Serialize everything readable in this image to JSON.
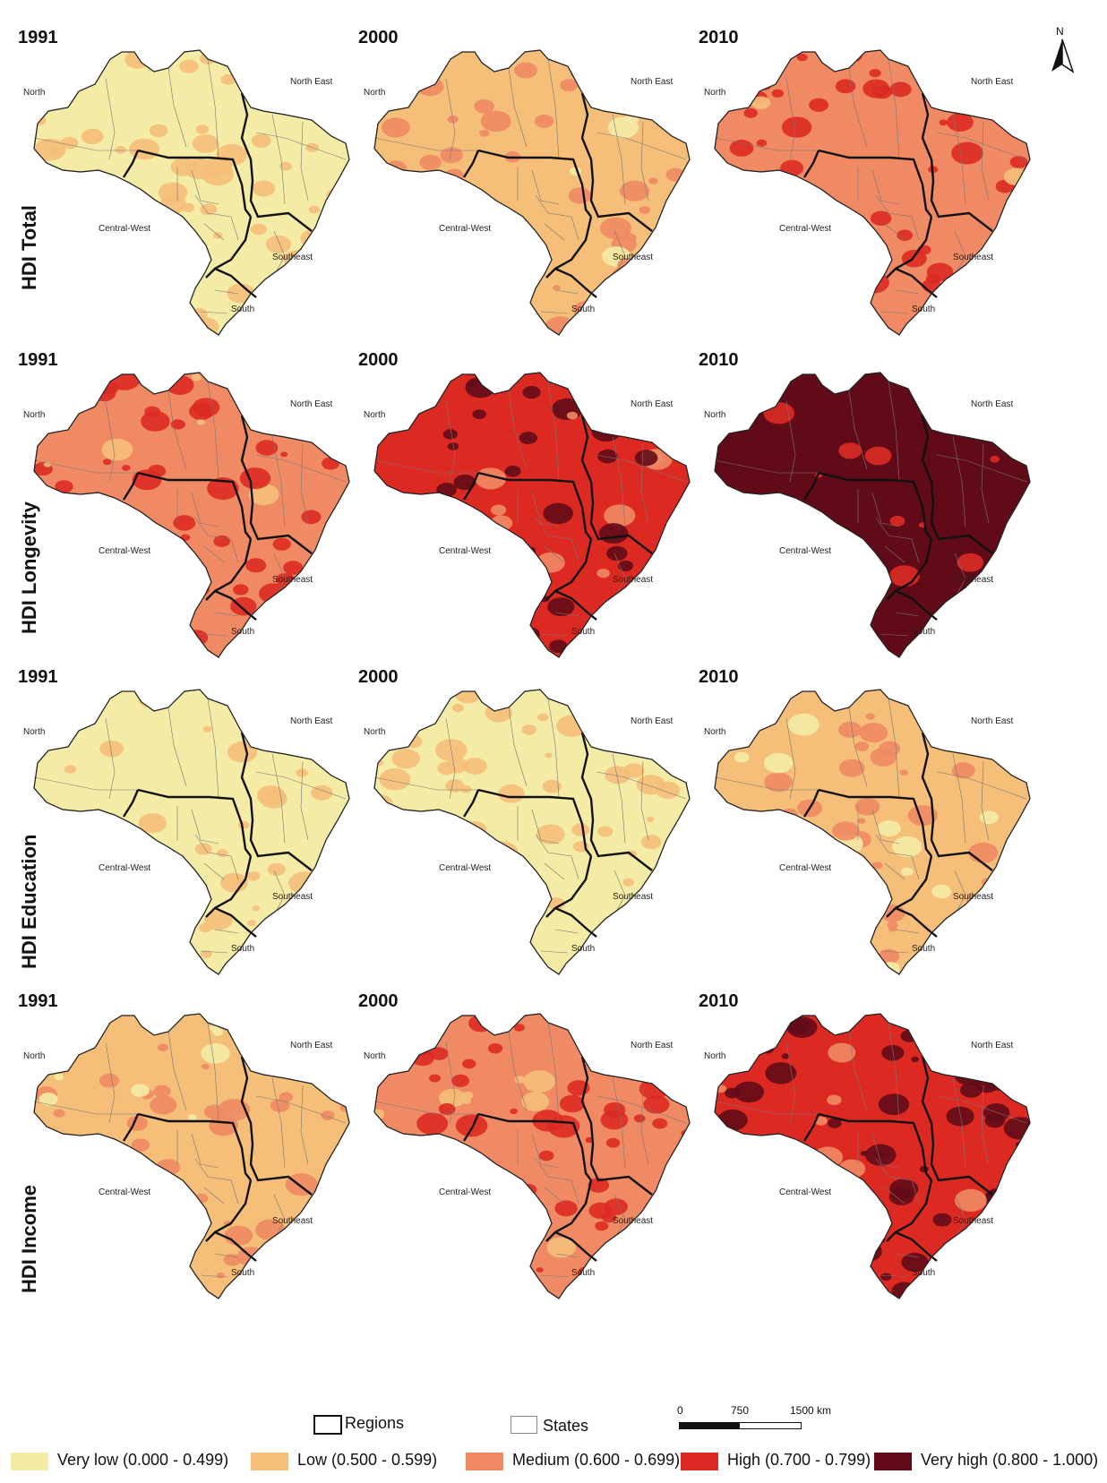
{
  "rows": [
    {
      "label": "HDI Total",
      "years": [
        "1991",
        "2000",
        "2010"
      ],
      "levels": [
        0,
        1,
        2
      ]
    },
    {
      "label": "HDI Longevity",
      "years": [
        "1991",
        "2000",
        "2010"
      ],
      "levels": [
        2,
        3,
        4
      ]
    },
    {
      "label": "HDI Education",
      "years": [
        "1991",
        "2000",
        "2010"
      ],
      "levels": [
        0,
        0,
        1
      ]
    },
    {
      "label": "HDI Income",
      "years": [
        "1991",
        "2000",
        "2010"
      ],
      "levels": [
        1,
        2,
        3
      ]
    }
  ],
  "region_labels": {
    "north": "North",
    "north_east": "North East",
    "central_west": "Central-West",
    "southeast": "Southeast",
    "south": "South"
  },
  "north_arrow": "N",
  "boundaries": {
    "regions": "Regions",
    "states": "States"
  },
  "scale_bar": {
    "ticks": [
      "0",
      "750",
      "1500 km"
    ]
  },
  "legend": [
    {
      "label": "Very low (0.000 - 0.499)",
      "color": "#f3eba6"
    },
    {
      "label": "Low (0.500 - 0.599)",
      "color": "#f5bf7a"
    },
    {
      "label": "Medium (0.600 - 0.699)",
      "color": "#ef8a64"
    },
    {
      "label": "High (0.700 - 0.799)",
      "color": "#dc2a22"
    },
    {
      "label": "Very high (0.800 - 1.000)",
      "color": "#620b18"
    }
  ]
}
